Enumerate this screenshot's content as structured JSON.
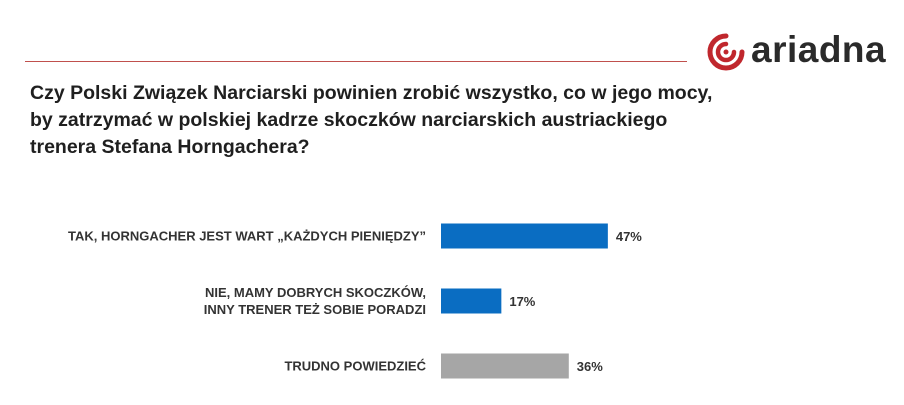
{
  "brand": {
    "name": "ariadna",
    "accent": "#c0272d"
  },
  "question": "Czy Polski Związek Narciarski powinien zrobić wszystko, co w jego mocy, by zatrzymać w polskiej kadrze skoczków narciarskich austriackiego trenera Stefana Horngachera?",
  "chart_data": {
    "type": "bar",
    "orientation": "horizontal",
    "categories": [
      [
        "TAK, HORNGACHER JEST WART „KAŻDYCH PIENIĘDZY”"
      ],
      [
        "NIE, MAMY DOBRYCH SKOCZKÓW,",
        "INNY TRENER TEŻ SOBIE PORADZI"
      ],
      [
        "TRUDNO POWIEDZIEĆ"
      ]
    ],
    "values": [
      47,
      17,
      36
    ],
    "value_labels": [
      "47%",
      "17%",
      "36%"
    ],
    "colors": [
      "#0a6dc2",
      "#0a6dc2",
      "#a6a6a6"
    ],
    "xlim": [
      0,
      100
    ],
    "grid": false,
    "legend": "none"
  }
}
